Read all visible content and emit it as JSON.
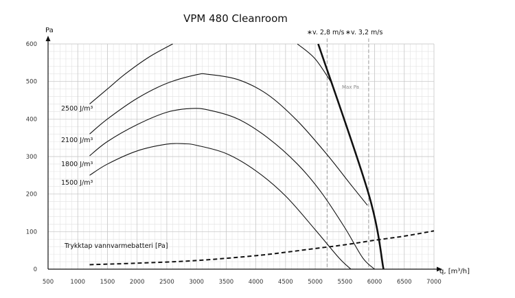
{
  "chart_data": {
    "type": "line",
    "title": "VPM 480 Cleanroom",
    "ylabel": "Pa",
    "xlabel": "q, [m³/h]",
    "xlim": [
      500,
      7000
    ],
    "ylim": [
      0,
      600
    ],
    "xticks": [
      500,
      1000,
      1500,
      2000,
      2500,
      3000,
      3500,
      4000,
      4500,
      5000,
      5500,
      6000,
      6500,
      7000
    ],
    "yticks": [
      0,
      100,
      200,
      300,
      400,
      500,
      600
    ],
    "grid": true,
    "series": [
      {
        "name": "1500 J/m³",
        "style": "solid",
        "points": [
          [
            1200,
            250
          ],
          [
            1500,
            280
          ],
          [
            2000,
            315
          ],
          [
            2500,
            333
          ],
          [
            2800,
            334
          ],
          [
            3000,
            330
          ],
          [
            3500,
            308
          ],
          [
            4000,
            262
          ],
          [
            4500,
            195
          ],
          [
            5000,
            105
          ],
          [
            5400,
            30
          ],
          [
            5600,
            0
          ]
        ]
      },
      {
        "name": "1800 J/m³",
        "style": "solid",
        "points": [
          [
            1200,
            302
          ],
          [
            1500,
            340
          ],
          [
            2000,
            385
          ],
          [
            2500,
            418
          ],
          [
            2900,
            428
          ],
          [
            3200,
            424
          ],
          [
            3700,
            400
          ],
          [
            4200,
            350
          ],
          [
            4700,
            280
          ],
          [
            5100,
            205
          ],
          [
            5500,
            110
          ],
          [
            5800,
            30
          ],
          [
            6000,
            0
          ]
        ]
      },
      {
        "name": "2100 J/m³",
        "style": "solid",
        "points": [
          [
            1200,
            360
          ],
          [
            1500,
            400
          ],
          [
            2000,
            455
          ],
          [
            2500,
            495
          ],
          [
            3000,
            518
          ],
          [
            3200,
            519
          ],
          [
            3700,
            505
          ],
          [
            4200,
            465
          ],
          [
            4700,
            395
          ],
          [
            5200,
            305
          ],
          [
            5600,
            225
          ],
          [
            5880,
            170
          ]
        ]
      },
      {
        "name": "2500 J/m³",
        "style": "solid",
        "points": [
          [
            1200,
            440
          ],
          [
            1500,
            480
          ],
          [
            1800,
            520
          ],
          [
            2200,
            565
          ],
          [
            2600,
            600
          ]
        ]
      },
      {
        "name": "",
        "style": "solid",
        "points": [
          [
            4700,
            600
          ],
          [
            5000,
            560
          ],
          [
            5300,
            490
          ]
        ]
      },
      {
        "name": "",
        "style": "thick",
        "points": [
          [
            5050,
            600
          ],
          [
            5900,
            200
          ],
          [
            6150,
            0
          ]
        ]
      },
      {
        "name": "Trykktap vannvarmebatteri [Pa]",
        "style": "dashed",
        "points": [
          [
            1200,
            12
          ],
          [
            2000,
            16
          ],
          [
            3000,
            23
          ],
          [
            4000,
            36
          ],
          [
            4500,
            45
          ],
          [
            5000,
            55
          ],
          [
            5500,
            65
          ],
          [
            6000,
            77
          ],
          [
            6500,
            88
          ],
          [
            7000,
            102
          ]
        ]
      }
    ],
    "vlines": [
      {
        "x": 5200,
        "label": "v. 2,8 m/s",
        "marker": "∗"
      },
      {
        "x": 5900,
        "label": "v. 3,2 m/s",
        "marker": "∗"
      }
    ],
    "annotations": [
      {
        "text": "Max Pa"
      }
    ],
    "legend": "curve labels placed at left of curves"
  }
}
